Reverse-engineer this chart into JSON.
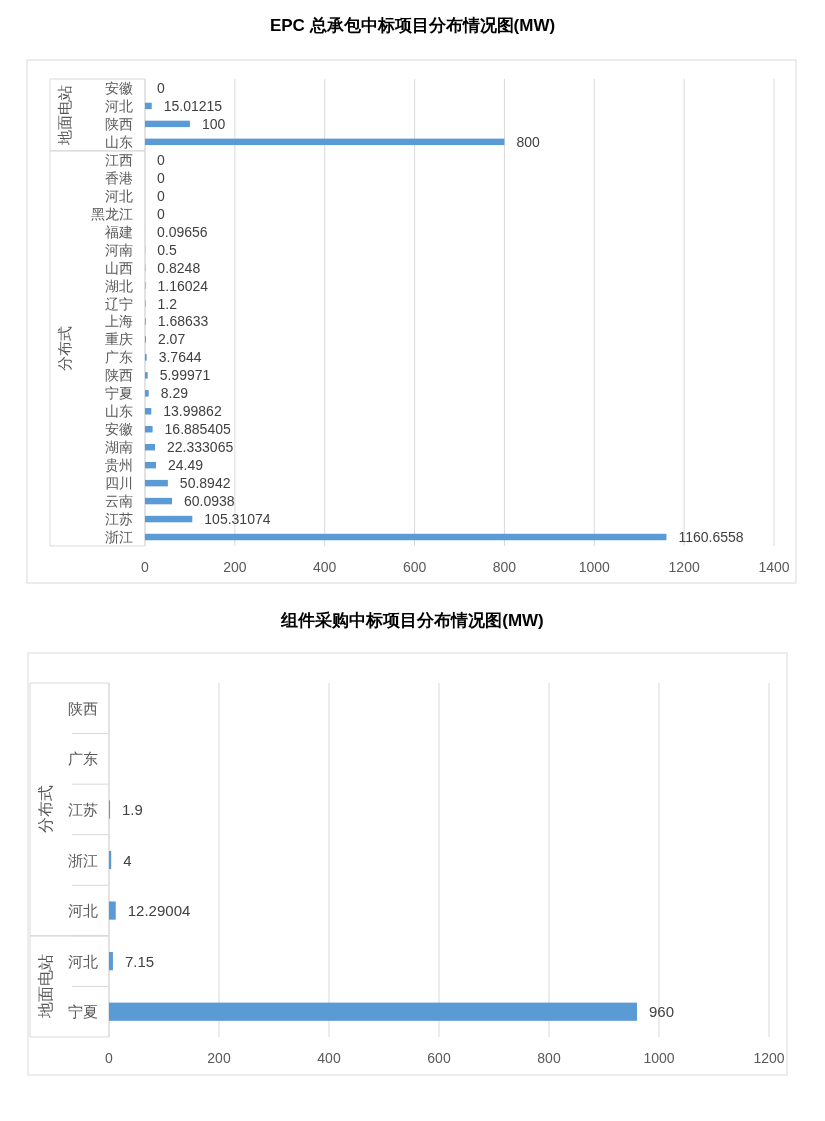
{
  "chart_data": [
    {
      "type": "bar",
      "orientation": "horizontal",
      "title": "EPC 总承包中标项目分布情况图(MW)",
      "categories": [
        "安徽",
        "河北",
        "陕西",
        "山东",
        "江西",
        "香港",
        "河北",
        "黑龙江",
        "福建",
        "河南",
        "山西",
        "湖北",
        "辽宁",
        "上海",
        "重庆",
        "广东",
        "陕西",
        "宁夏",
        "山东",
        "安徽",
        "湖南",
        "贵州",
        "四川",
        "云南",
        "江苏",
        "浙江"
      ],
      "series": [
        {
          "color": "#5b9bd5",
          "values": [
            0,
            15.01215,
            100,
            800,
            null,
            null,
            null,
            null,
            null,
            null,
            null,
            null,
            null,
            null,
            null,
            null,
            null,
            null,
            null,
            null,
            null,
            null,
            null,
            null,
            null,
            null
          ]
        },
        {
          "color": "#5b9bd5",
          "values": [
            null,
            null,
            null,
            null,
            0,
            0,
            0,
            0,
            0.09656,
            0.5,
            0.8248,
            1.16024,
            1.2,
            1.68633,
            2.07,
            3.7644,
            5.99971,
            8.29,
            13.99862,
            16.885405,
            22.333065,
            24.49,
            50.8942,
            60.0938,
            105.31074,
            1160.6558
          ]
        }
      ],
      "annotations": [
        "地面电站",
        "分布式"
      ],
      "xlim": [
        0,
        1400
      ],
      "xticks": [
        0,
        200,
        400,
        600,
        800,
        1000,
        1200,
        1400
      ],
      "grid": "x",
      "data_labels": true
    },
    {
      "type": "bar",
      "orientation": "horizontal",
      "title": "组件采购中标项目分布情况图(MW)",
      "categories": [
        "陕西",
        "广东",
        "江苏",
        "浙江",
        "河北",
        "河北",
        "宁夏"
      ],
      "series": [
        {
          "color": "#5b9bd5",
          "values": [
            null,
            null,
            1.9,
            4,
            12.29004,
            null,
            null
          ]
        },
        {
          "color": "#5b9bd5",
          "values": [
            null,
            null,
            null,
            null,
            null,
            7.15,
            960
          ]
        }
      ],
      "annotations": [
        "分布式",
        "地面电站"
      ],
      "xlim": [
        0,
        1200
      ],
      "xticks": [
        0,
        200,
        400,
        600,
        800,
        1000,
        1200
      ],
      "grid": "x",
      "data_labels": true
    }
  ]
}
